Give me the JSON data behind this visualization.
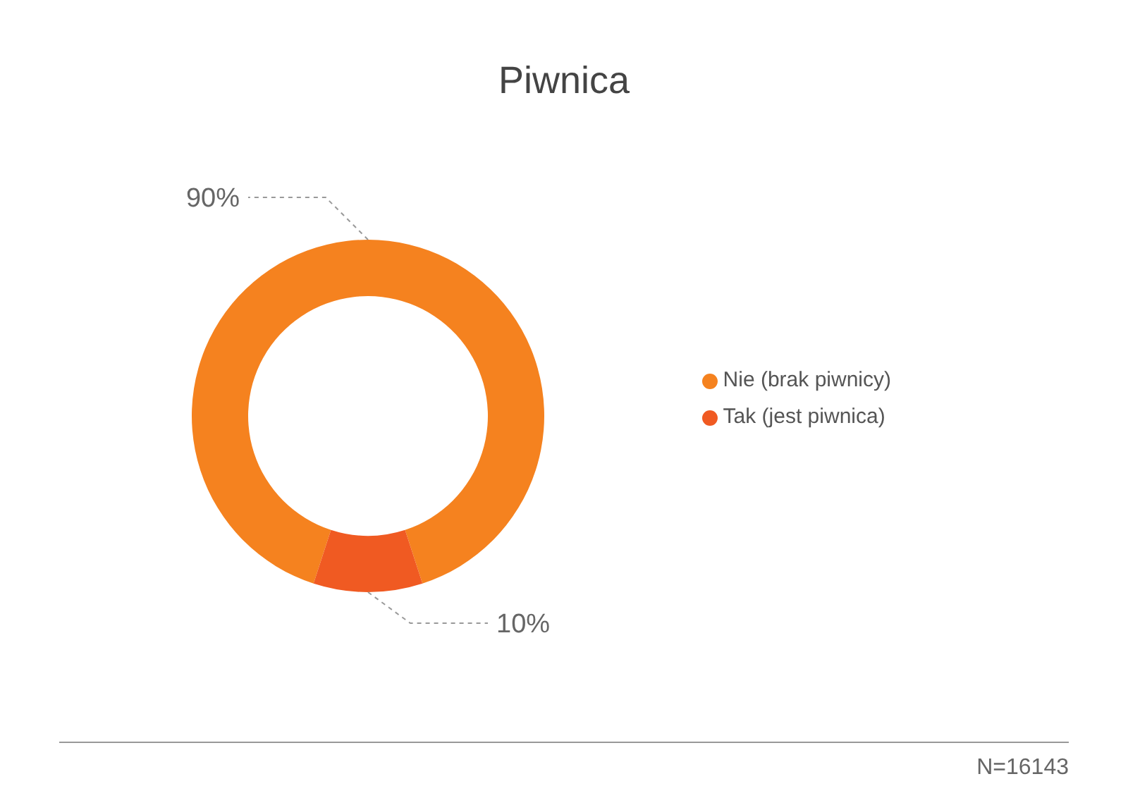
{
  "chart_data": {
    "type": "donut",
    "title": "Piwnica",
    "categories": [
      "Nie (brak piwnicy)",
      "Tak (jest piwnica)"
    ],
    "values": [
      90,
      10
    ],
    "colors": [
      "#f5821f",
      "#f05a22"
    ],
    "value_labels": [
      "90%",
      "10%"
    ],
    "legend": "right",
    "annotations": [
      "N=16143"
    ]
  }
}
